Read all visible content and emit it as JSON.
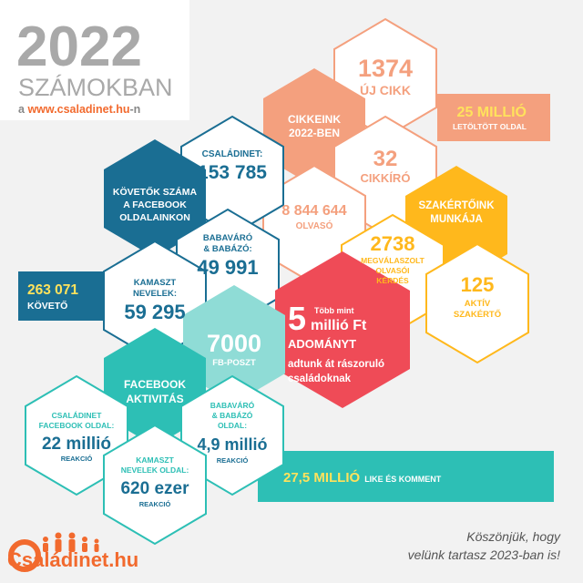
{
  "header": {
    "year": "2022",
    "subtitle": "SZÁMOKBAN",
    "source_prefix": "a ",
    "source_site": "www.csaladinet.hu",
    "source_suffix": "-n"
  },
  "articles": {
    "label_line1": "CIKKEINK",
    "label_line2": "2022-BEN",
    "new_articles_value": "1374",
    "new_articles_label": "ÚJ CIKK",
    "downloads_value": "25 MILLIÓ",
    "downloads_label": "LETÖLTÖTT OLDAL",
    "authors_value": "32",
    "authors_label": "CIKKÍRÓ",
    "readers_value": "8 844 644",
    "readers_label": "OLVASÓ"
  },
  "experts": {
    "label_line1": "SZAKÉRTŐINK",
    "label_line2": "MUNKÁJA",
    "answered_value": "2738",
    "answered_line1": "MEGVÁLASZOLT",
    "answered_line2": "OLVASÓI",
    "answered_line3": "KÉRDÉS",
    "active_value": "125",
    "active_line1": "AKTÍV",
    "active_line2": "SZAKÉRTŐ"
  },
  "followers": {
    "label_line1": "KÖVETŐK SZÁMA",
    "label_line2": "A FACEBOOK",
    "label_line3": "OLDALAINKON",
    "csaladinet_label": "CSALÁDINET:",
    "csaladinet_value": "153 785",
    "babavaro_line1": "BABAVÁRÓ",
    "babavaro_line2": "& BABÁZÓ:",
    "babavaro_value": "49 991",
    "kamaszt_line1": "KAMASZT",
    "kamaszt_line2": "NEVELEK:",
    "kamaszt_value": "59 295",
    "total_value": "263 071",
    "total_label": "KÖVETŐ"
  },
  "donation": {
    "prefix": "Több mint",
    "number": "5",
    "amount": "millió Ft",
    "headline": "ADOMÁNYT",
    "line1": "adtunk át rászoruló",
    "line2": "családoknak"
  },
  "posts": {
    "value": "7000",
    "label": "FB-POSZT"
  },
  "activity": {
    "label_line1": "FACEBOOK",
    "label_line2": "AKTIVITÁS",
    "csaladinet_line1": "CSALÁDINET",
    "csaladinet_line2": "FACEBOOK OLDAL:",
    "csaladinet_value": "22 millió",
    "csaladinet_unit": "REAKCIÓ",
    "babavaro_line1": "BABAVÁRÓ",
    "babavaro_line2": "& BABÁZÓ",
    "babavaro_line3": "OLDAL:",
    "babavaro_value": "4,9 millió",
    "babavaro_unit": "REAKCIÓ",
    "kamaszt_line1": "KAMASZT",
    "kamaszt_line2": "NEVELEK OLDAL:",
    "kamaszt_value": "620 ezer",
    "kamaszt_unit": "REAKCIÓ",
    "total_value": "27,5 MILLIÓ",
    "total_label": "LIKE ÉS KOMMENT"
  },
  "footer": {
    "thanks_line1": "Köszönjük, hogy",
    "thanks_line2": "velünk tartasz 2023-ban is!",
    "logo_text": "Családinet.hu"
  },
  "colors": {
    "salmon": "#f4a07e",
    "yellow": "#ffb81c",
    "red": "#ef4b57",
    "teal": "#2dbfb5",
    "navy": "#1a6e93",
    "gray_text": "#b3b3b3",
    "orange_link": "#f26a2e"
  }
}
